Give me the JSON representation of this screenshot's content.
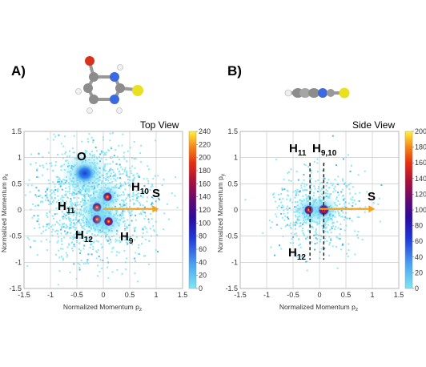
{
  "chart_data": [
    {
      "type": "heatmap",
      "panel_label": "A)",
      "title": "Top View",
      "xlabel": "Normalized Momentum p",
      "xlabel_sub": "z",
      "ylabel": "Normalized Momentum p",
      "ylabel_sub": "x",
      "xlim": [
        -1.5,
        1.5
      ],
      "ylim": [
        -1.5,
        1.5
      ],
      "xticks": [
        "-1.5",
        "-1",
        "-0.5",
        "0",
        "0.5",
        "1",
        "1.5"
      ],
      "yticks": [
        "-1.5",
        "-1",
        "-0.5",
        "0",
        "0.5",
        "1",
        "1.5"
      ],
      "colorbar": {
        "min": 0,
        "max": 240,
        "ticks": [
          "0",
          "20",
          "40",
          "60",
          "80",
          "100",
          "120",
          "140",
          "160",
          "180",
          "200",
          "220",
          "240"
        ]
      },
      "grid": true,
      "clusters": [
        {
          "label": "O",
          "x": -0.35,
          "y": 0.7,
          "peak": 90
        },
        {
          "label": "H10",
          "x": 0.08,
          "y": 0.25,
          "peak": 220
        },
        {
          "label": "H11",
          "x": -0.12,
          "y": 0.05,
          "peak": 230
        },
        {
          "label": "H12",
          "x": -0.12,
          "y": -0.18,
          "peak": 220
        },
        {
          "label": "H9",
          "x": 0.1,
          "y": -0.22,
          "peak": 220
        }
      ],
      "annotations": [
        {
          "main": "O",
          "sub": ""
        },
        {
          "main": "H",
          "sub": "10"
        },
        {
          "main": "H",
          "sub": "11"
        },
        {
          "main": "H",
          "sub": "12"
        },
        {
          "main": "H",
          "sub": "9"
        },
        {
          "main": "S",
          "sub": ""
        }
      ],
      "arrow": {
        "x0": 0.0,
        "y0": 0.02,
        "x1": 1.05,
        "y1": 0.02,
        "color": "#f2a21d"
      }
    },
    {
      "type": "heatmap",
      "panel_label": "B)",
      "title": "Side View",
      "xlabel": "Normalized Momentum p",
      "xlabel_sub": "z",
      "ylabel": "Normalized Momentum p",
      "ylabel_sub": "y",
      "xlim": [
        -1.5,
        1.5
      ],
      "ylim": [
        -1.5,
        1.5
      ],
      "xticks": [
        "-1.5",
        "-1",
        "-0.5",
        "0",
        "0.5",
        "1",
        "1.5"
      ],
      "yticks": [
        "-1.5",
        "-1",
        "-0.5",
        "0",
        "0.5",
        "1",
        "1.5"
      ],
      "colorbar": {
        "min": 0,
        "max": 200,
        "ticks": [
          "0",
          "20",
          "40",
          "60",
          "80",
          "100",
          "120",
          "140",
          "160",
          "180",
          "200"
        ]
      },
      "grid": true,
      "clusters": [
        {
          "label": "H11/H12",
          "x": -0.2,
          "y": 0.0,
          "peak": 200
        },
        {
          "label": "H9,10",
          "x": 0.08,
          "y": 0.0,
          "peak": 150
        }
      ],
      "annotations": [
        {
          "main": "H",
          "sub": "11"
        },
        {
          "main": "H",
          "sub": "9,10"
        },
        {
          "main": "H",
          "sub": "12"
        },
        {
          "main": "S",
          "sub": ""
        }
      ],
      "dashed_lines": [
        -0.18,
        0.08
      ],
      "arrow": {
        "x0": 0.0,
        "y0": 0.02,
        "x1": 1.05,
        "y1": 0.02,
        "color": "#f2a21d"
      }
    }
  ]
}
